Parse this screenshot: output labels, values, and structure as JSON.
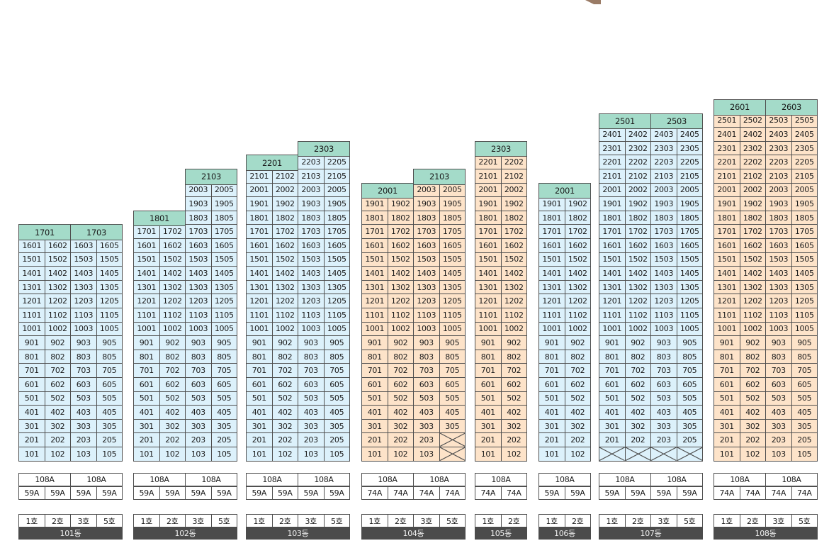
{
  "colors": {
    "unit_blue": "#dcf1fb",
    "unit_orange": "#fde3c9",
    "header_green": "#a4dbc9",
    "label_dark": "#4b4b4b"
  },
  "buildings": [
    {
      "name": "101동",
      "theme": "blue",
      "top_floor": 16,
      "headers": [
        {
          "label": "1701",
          "span": 2,
          "floor": 17
        },
        {
          "label": "1703",
          "span": 2,
          "floor": 17
        }
      ],
      "columns": [
        {
          "suffix": "01",
          "max": 16
        },
        {
          "suffix": "02",
          "max": 16
        },
        {
          "suffix": "03",
          "max": 16
        },
        {
          "suffix": "05",
          "max": 16
        }
      ],
      "empty": [],
      "type_row1": [
        "108A",
        "108A"
      ],
      "type_row2": [
        "59A",
        "59A",
        "59A",
        "59A"
      ],
      "lines": [
        "1호",
        "2호",
        "3호",
        "5호"
      ]
    },
    {
      "name": "102동",
      "theme": "blue",
      "top_floor": 19,
      "headers": [
        {
          "label": "1801",
          "span": 2,
          "floor": 18
        },
        {
          "label": "2103",
          "span": 2,
          "floor": 21
        }
      ],
      "columns": [
        {
          "suffix": "01",
          "max": 17
        },
        {
          "suffix": "02",
          "max": 17
        },
        {
          "suffix": "03",
          "max": 20
        },
        {
          "suffix": "05",
          "max": 20
        }
      ],
      "empty": [],
      "type_row1": [
        "108A",
        "108A"
      ],
      "type_row2": [
        "59A",
        "59A",
        "59A",
        "59A"
      ],
      "lines": [
        "1호",
        "2호",
        "3호",
        "5호"
      ]
    },
    {
      "name": "103동",
      "theme": "blue",
      "top_floor": 21,
      "headers": [
        {
          "label": "2201",
          "span": 2,
          "floor": 22
        },
        {
          "label": "2303",
          "span": 2,
          "floor": 23
        }
      ],
      "columns": [
        {
          "suffix": "01",
          "max": 21
        },
        {
          "suffix": "02",
          "max": 21
        },
        {
          "suffix": "03",
          "max": 22
        },
        {
          "suffix": "05",
          "max": 22
        }
      ],
      "empty": [],
      "type_row1": [
        "108A",
        "108A"
      ],
      "type_row2": [
        "59A",
        "59A",
        "59A",
        "59A"
      ],
      "lines": [
        "1호",
        "2호",
        "3호",
        "5호"
      ]
    },
    {
      "name": "104동",
      "theme": "orange",
      "top_floor": 19,
      "headers": [
        {
          "label": "2001",
          "span": 2,
          "floor": 20
        },
        {
          "label": "2103",
          "span": 2,
          "floor": 21
        }
      ],
      "columns": [
        {
          "suffix": "01",
          "max": 19
        },
        {
          "suffix": "02",
          "max": 19
        },
        {
          "suffix": "03",
          "max": 20
        },
        {
          "suffix": "05",
          "max": 20
        }
      ],
      "empty": [
        "105",
        "205"
      ],
      "type_row1": [
        "108A",
        "108A"
      ],
      "type_row2": [
        "74A",
        "74A",
        "74A",
        "74A"
      ],
      "lines": [
        "1호",
        "2호",
        "3호",
        "5호"
      ]
    },
    {
      "name": "105동",
      "theme": "orange",
      "top_floor": 22,
      "headers": [
        {
          "label": "2303",
          "span": 2,
          "floor": 23
        }
      ],
      "columns": [
        {
          "suffix": "01",
          "max": 22
        },
        {
          "suffix": "02",
          "max": 22
        }
      ],
      "empty": [],
      "type_row1": [
        "108A"
      ],
      "type_row2": [
        "74A",
        "74A"
      ],
      "lines": [
        "1호",
        "2호"
      ]
    },
    {
      "name": "106동",
      "theme": "blue",
      "top_floor": 19,
      "headers": [
        {
          "label": "2001",
          "span": 2,
          "floor": 20
        }
      ],
      "columns": [
        {
          "suffix": "01",
          "max": 19
        },
        {
          "suffix": "02",
          "max": 19
        }
      ],
      "empty": [],
      "type_row1": [
        "108A"
      ],
      "type_row2": [
        "59A",
        "59A"
      ],
      "lines": [
        "1호",
        "2호"
      ]
    },
    {
      "name": "107동",
      "theme": "blue",
      "top_floor": 24,
      "headers": [
        {
          "label": "2501",
          "span": 2,
          "floor": 25
        },
        {
          "label": "2503",
          "span": 2,
          "floor": 25
        }
      ],
      "columns": [
        {
          "suffix": "01",
          "max": 24
        },
        {
          "suffix": "02",
          "max": 24
        },
        {
          "suffix": "03",
          "max": 24
        },
        {
          "suffix": "05",
          "max": 24
        }
      ],
      "empty": [
        "101",
        "102",
        "103",
        "105"
      ],
      "type_row1": [
        "108A",
        "108A"
      ],
      "type_row2": [
        "59A",
        "59A",
        "59A",
        "59A"
      ],
      "lines": [
        "1호",
        "2호",
        "3호",
        "5호"
      ]
    },
    {
      "name": "108동",
      "theme": "orange",
      "top_floor": 25,
      "headers": [
        {
          "label": "2601",
          "span": 2,
          "floor": 26
        },
        {
          "label": "2603",
          "span": 2,
          "floor": 26
        }
      ],
      "columns": [
        {
          "suffix": "01",
          "max": 25
        },
        {
          "suffix": "02",
          "max": 25
        },
        {
          "suffix": "03",
          "max": 25
        },
        {
          "suffix": "05",
          "max": 25
        }
      ],
      "empty": [],
      "type_row1": [
        "108A",
        "108A"
      ],
      "type_row2": [
        "74A",
        "74A",
        "74A",
        "74A"
      ],
      "lines": [
        "1호",
        "2호",
        "3호",
        "5호"
      ]
    }
  ]
}
